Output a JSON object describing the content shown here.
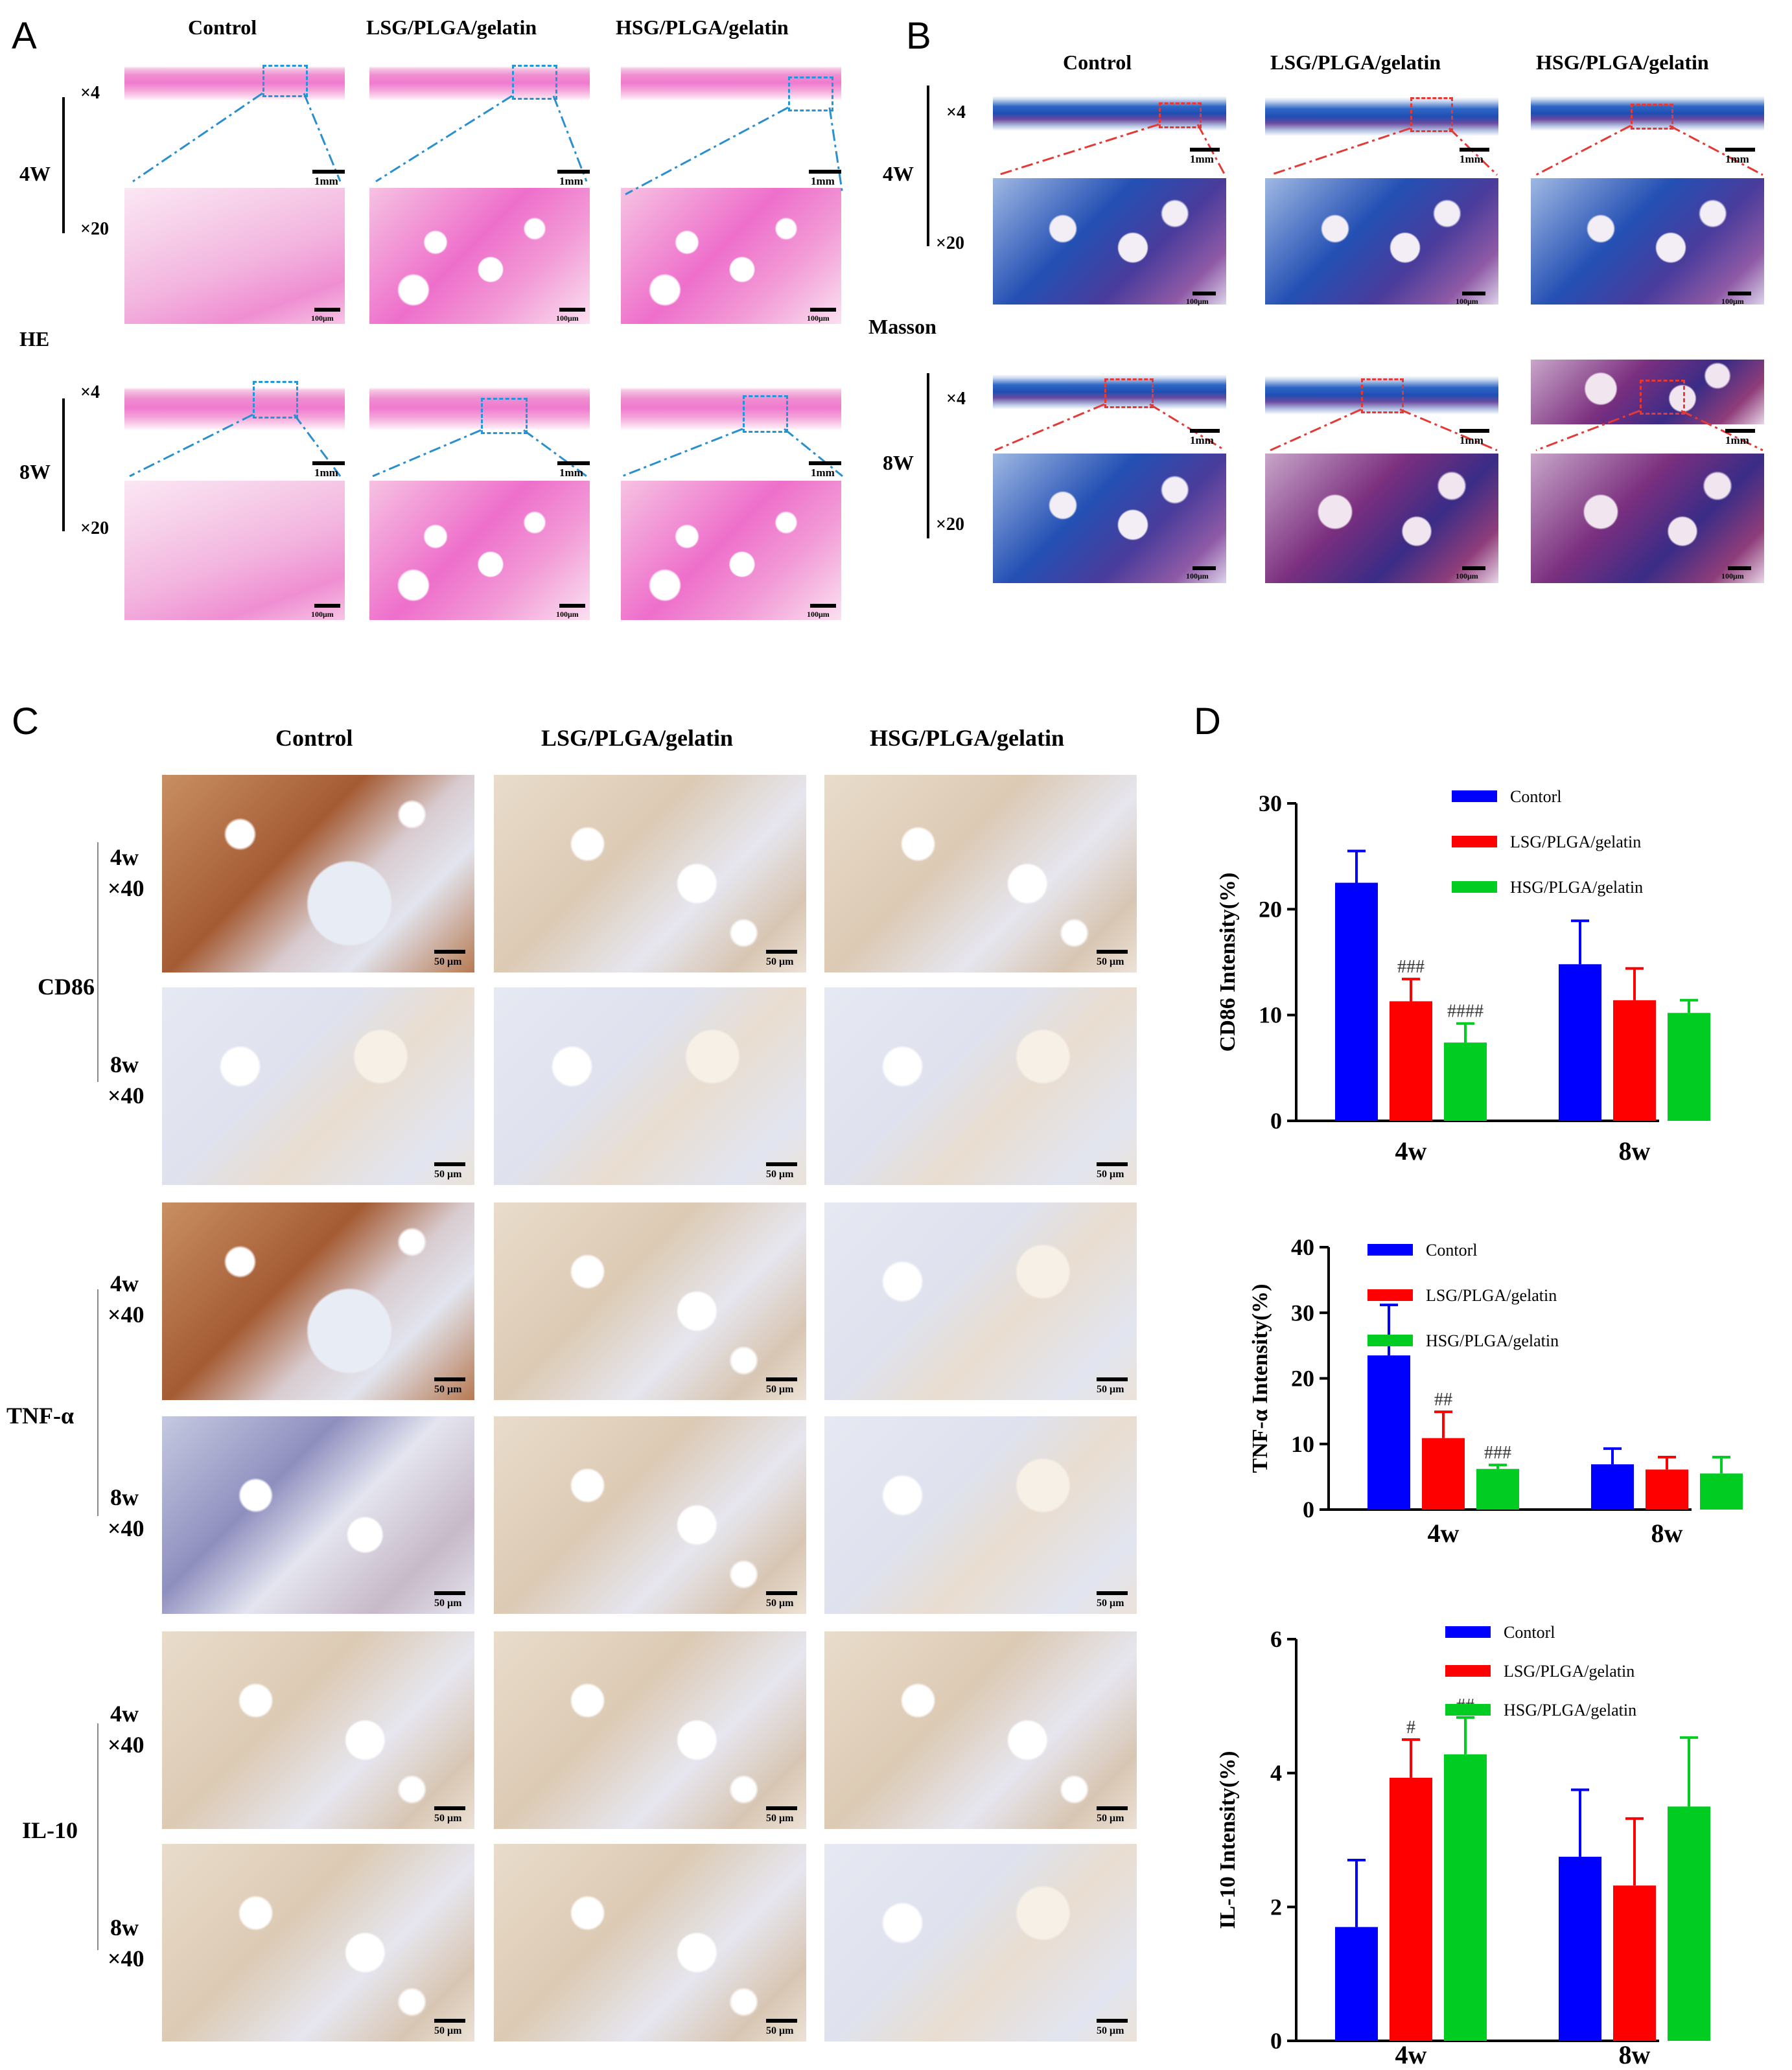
{
  "panels": {
    "a": "A",
    "b": "B",
    "c": "C",
    "d": "D"
  },
  "groups": [
    "Control",
    "LSG/PLGA/gelatin",
    "HSG/PLGA/gelatin"
  ],
  "panelA": {
    "stain": "HE",
    "times": [
      "4W",
      "8W"
    ],
    "mags": [
      "×4",
      "×20"
    ],
    "scale_low": "1mm",
    "scale_high": "100μm"
  },
  "panelB": {
    "stain": "Masson",
    "times": [
      "4W",
      "8W"
    ],
    "mags": [
      "×4",
      "×20"
    ],
    "scale_low": "1mm",
    "scale_high": "100μm"
  },
  "panelC": {
    "markers": [
      "CD86",
      "TNF-α",
      "IL-10"
    ],
    "rows": [
      {
        "time": "4w",
        "mag": "×40"
      },
      {
        "time": "8w",
        "mag": "×40"
      }
    ],
    "scale": "50 μm"
  },
  "chart_data": [
    {
      "type": "bar",
      "ylabel": "CD86 Intensity(%)",
      "categories": [
        "4w",
        "8w"
      ],
      "ylim": [
        0,
        30
      ],
      "yticks": [
        0,
        10,
        20,
        30
      ],
      "legend_position": "top-right",
      "series": [
        {
          "name": "Contorl",
          "color": "#0000ff",
          "values": [
            22.5,
            14.8
          ],
          "errors": [
            3.0,
            4.1
          ]
        },
        {
          "name": "LSG/PLGA/gelatin",
          "color": "#ff0000",
          "values": [
            11.3,
            11.4
          ],
          "errors": [
            2.1,
            3.0
          ]
        },
        {
          "name": "HSG/PLGA/gelatin",
          "color": "#00cc22",
          "values": [
            7.4,
            10.2
          ],
          "errors": [
            1.8,
            1.2
          ]
        }
      ],
      "annotations": [
        [
          "",
          "###",
          "####"
        ],
        [
          "",
          "",
          ""
        ]
      ]
    },
    {
      "type": "bar",
      "ylabel": "TNF-α Intensity(%)",
      "categories": [
        "4w",
        "8w"
      ],
      "ylim": [
        0,
        40
      ],
      "yticks": [
        0,
        10,
        20,
        30,
        40
      ],
      "legend_position": "top-right",
      "series": [
        {
          "name": "Contorl",
          "color": "#0000ff",
          "values": [
            23.5,
            6.9
          ],
          "errors": [
            7.7,
            2.4
          ]
        },
        {
          "name": "LSG/PLGA/gelatin",
          "color": "#ff0000",
          "values": [
            10.9,
            6.1
          ],
          "errors": [
            4.0,
            1.9
          ]
        },
        {
          "name": "HSG/PLGA/gelatin",
          "color": "#00cc22",
          "values": [
            6.2,
            5.5
          ],
          "errors": [
            0.6,
            2.5
          ]
        }
      ],
      "annotations": [
        [
          "",
          "##",
          "###"
        ],
        [
          "",
          "",
          ""
        ]
      ]
    },
    {
      "type": "bar",
      "ylabel": "IL-10 Intensity(%)",
      "categories": [
        "4w",
        "8w"
      ],
      "ylim": [
        0,
        6
      ],
      "yticks": [
        0,
        2,
        4,
        6
      ],
      "legend_position": "top-right",
      "series": [
        {
          "name": "Contorl",
          "color": "#0000ff",
          "values": [
            1.7,
            2.75
          ],
          "errors": [
            1.0,
            1.0
          ]
        },
        {
          "name": "LSG/PLGA/gelatin",
          "color": "#ff0000",
          "values": [
            3.93,
            2.32
          ],
          "errors": [
            0.57,
            1.0
          ]
        },
        {
          "name": "HSG/PLGA/gelatin",
          "color": "#00cc22",
          "values": [
            4.28,
            3.5
          ],
          "errors": [
            0.55,
            1.03
          ]
        }
      ],
      "annotations": [
        [
          "",
          "#",
          "##"
        ],
        [
          "",
          "",
          ""
        ]
      ]
    }
  ]
}
